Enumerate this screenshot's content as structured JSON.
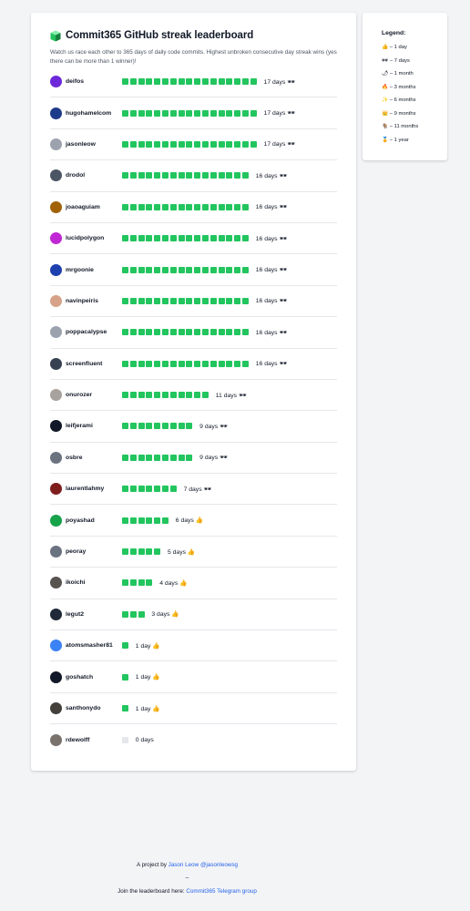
{
  "header": {
    "title": "Commit365 GitHub streak leaderboard",
    "description": "Watch us race each other to 365 days of daily code commits. Highest unbroken consecutive day streak wins (yes there can be more than 1 winner)!"
  },
  "leaderboard": [
    {
      "username": "deifos",
      "days": 17,
      "streak_label": "17 days 🕶",
      "avatar_color": "#6d28d9"
    },
    {
      "username": "hugohamelcom",
      "days": 17,
      "streak_label": "17 days 🕶",
      "avatar_color": "#1e3a8a"
    },
    {
      "username": "jasonleow",
      "days": 17,
      "streak_label": "17 days 🕶",
      "avatar_color": "#9ca3af"
    },
    {
      "username": "drodol",
      "days": 16,
      "streak_label": "16 days 🕶",
      "avatar_color": "#4b5563"
    },
    {
      "username": "joaoaguiam",
      "days": 16,
      "streak_label": "16 days 🕶",
      "avatar_color": "#a16207"
    },
    {
      "username": "lucidpolygon",
      "days": 16,
      "streak_label": "16 days 🕶",
      "avatar_color": "#c026d3"
    },
    {
      "username": "mrgoonie",
      "days": 16,
      "streak_label": "16 days 🕶",
      "avatar_color": "#1e40af"
    },
    {
      "username": "navinpeiris",
      "days": 16,
      "streak_label": "16 days 🕶",
      "avatar_color": "#d6a38a"
    },
    {
      "username": "poppacalypse",
      "days": 16,
      "streak_label": "16 days 🕶",
      "avatar_color": "#9ca3af"
    },
    {
      "username": "screenfluent",
      "days": 16,
      "streak_label": "16 days 🕶",
      "avatar_color": "#374151"
    },
    {
      "username": "onurozer",
      "days": 11,
      "streak_label": "11 days 🕶",
      "avatar_color": "#a8a29e"
    },
    {
      "username": "leifjerami",
      "days": 9,
      "streak_label": "9 days 🕶",
      "avatar_color": "#111827"
    },
    {
      "username": "osbre",
      "days": 9,
      "streak_label": "9 days 🕶",
      "avatar_color": "#6b7280"
    },
    {
      "username": "laurentlahmy",
      "days": 7,
      "streak_label": "7 days 🕶",
      "avatar_color": "#7f1d1d"
    },
    {
      "username": "poyashad",
      "days": 6,
      "streak_label": "6 days 👍",
      "avatar_color": "#16a34a"
    },
    {
      "username": "peoray",
      "days": 5,
      "streak_label": "5 days 👍",
      "avatar_color": "#6b7280"
    },
    {
      "username": "ikoichi",
      "days": 4,
      "streak_label": "4 days 👍",
      "avatar_color": "#57534e"
    },
    {
      "username": "legut2",
      "days": 3,
      "streak_label": "3 days 👍",
      "avatar_color": "#1f2937"
    },
    {
      "username": "atomsmasher81",
      "days": 1,
      "streak_label": "1 day 👍",
      "avatar_color": "#3b82f6"
    },
    {
      "username": "goshatch",
      "days": 1,
      "streak_label": "1 day 👍",
      "avatar_color": "#111827"
    },
    {
      "username": "santhonydo",
      "days": 1,
      "streak_label": "1 day 👍",
      "avatar_color": "#44403c"
    },
    {
      "username": "rdewolff",
      "days": 0,
      "streak_label": "0 days",
      "avatar_color": "#78716c"
    }
  ],
  "legend": {
    "title": "Legend:",
    "items": [
      "👍 – 1 day",
      "🕶 – 7 days",
      "🌶 – 1 month",
      "🔥 – 3 months",
      "✨ – 6 months",
      "👑 – 9 months",
      "🐐 – 11 months",
      "🏅 – 1 year"
    ]
  },
  "footer": {
    "project_prefix": "A project by ",
    "project_link": "Jason Leow @jasonleowsg",
    "separator": "–",
    "join_prefix": "Join the leaderboard here: ",
    "join_link": "Commit365 Telegram group"
  },
  "colors": {
    "streak_green": "#22c55e",
    "empty_square": "#e5e7eb",
    "link_blue": "#2563eb"
  }
}
